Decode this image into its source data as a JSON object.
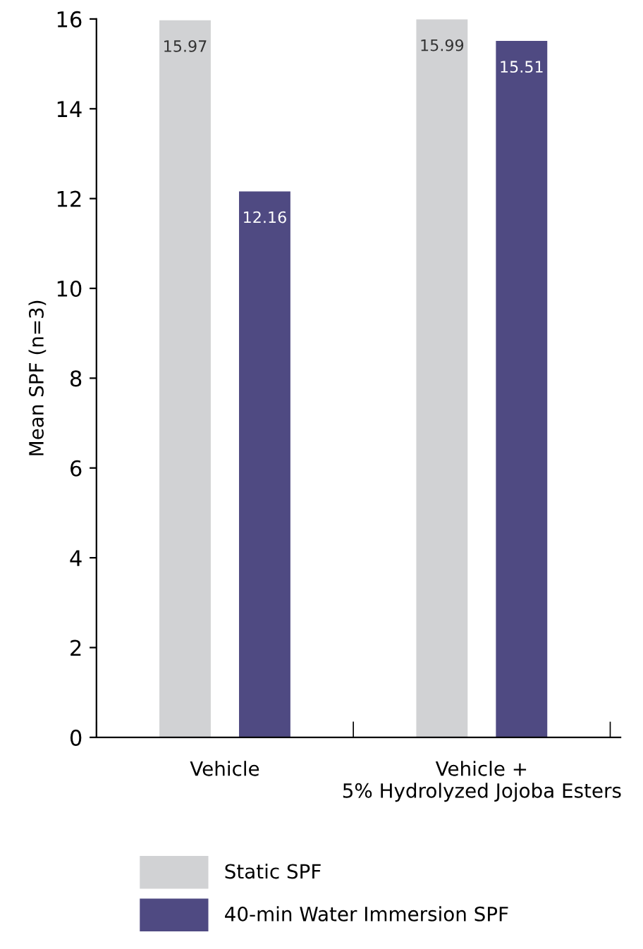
{
  "chart_data": {
    "type": "bar",
    "ylabel": "Mean SPF (n=3)",
    "categories": [
      "Vehicle",
      "Vehicle +\n5% Hydrolyzed Jojoba Esters"
    ],
    "series": [
      {
        "name": "Static SPF",
        "color": "#d1d2d4",
        "values": [
          15.97,
          15.99
        ]
      },
      {
        "name": "40-min Water Immersion SPF",
        "color": "#4f4a82",
        "values": [
          12.16,
          15.51
        ]
      }
    ],
    "ylim": [
      0,
      16
    ],
    "yticks": [
      0,
      2,
      4,
      6,
      8,
      10,
      12,
      14,
      16
    ],
    "data_labels": true,
    "grid": false,
    "legend": "bottom"
  }
}
